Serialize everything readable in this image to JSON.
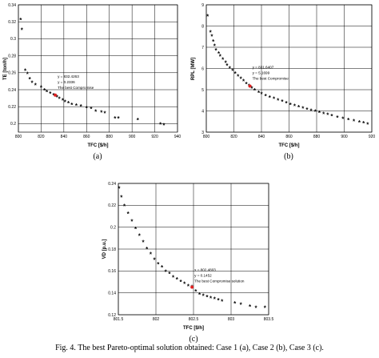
{
  "figure": {
    "caption": "Fig. 4. The best Pareto-optimal solution obtained: Case 1 (a), Case 2 (b), Case 3 (c)."
  },
  "chart_data": [
    {
      "type": "scatter",
      "panel_label": "(a)",
      "xlabel": "TFC [$/h]",
      "ylabel": "TE [ton/h]",
      "xlim": [
        800,
        940
      ],
      "ylim": [
        0.19,
        0.34
      ],
      "xticks": [
        800,
        820,
        840,
        860,
        880,
        900,
        920,
        940
      ],
      "yticks": [
        0.2,
        0.22,
        0.24,
        0.26,
        0.28,
        0.3,
        0.32,
        0.34
      ],
      "grid": true,
      "annotation": [
        "y = 832.4263",
        "y = 0.2336",
        "The best Compromise"
      ],
      "highlight": {
        "x": 832.4263,
        "y": 0.2336
      },
      "points": [
        [
          802,
          0.322
        ],
        [
          803,
          0.31
        ],
        [
          806,
          0.262
        ],
        [
          808,
          0.258
        ],
        [
          810,
          0.252
        ],
        [
          812,
          0.248
        ],
        [
          815,
          0.245
        ],
        [
          820,
          0.242
        ],
        [
          823,
          0.239
        ],
        [
          825,
          0.237
        ],
        [
          828,
          0.235
        ],
        [
          831,
          0.233
        ],
        [
          834,
          0.231
        ],
        [
          836,
          0.229
        ],
        [
          839,
          0.227
        ],
        [
          841,
          0.225
        ],
        [
          844,
          0.224
        ],
        [
          847,
          0.222
        ],
        [
          851,
          0.221
        ],
        [
          855,
          0.22
        ],
        [
          860,
          0.218
        ],
        [
          864,
          0.217
        ],
        [
          868,
          0.214
        ],
        [
          873,
          0.213
        ],
        [
          876,
          0.212
        ],
        [
          885,
          0.206
        ],
        [
          888,
          0.206
        ],
        [
          905,
          0.204
        ],
        [
          925,
          0.199
        ],
        [
          928,
          0.198
        ]
      ]
    },
    {
      "type": "scatter",
      "panel_label": "(b)",
      "xlabel": "TFC [$/h]",
      "ylabel": "RPL [MW]",
      "xlim": [
        800,
        920
      ],
      "ylim": [
        3,
        9
      ],
      "xticks": [
        800,
        820,
        840,
        860,
        880,
        900,
        920
      ],
      "yticks": [
        3,
        4,
        5,
        6,
        7,
        8,
        9
      ],
      "grid": true,
      "annotation": [
        "y = 831.6407",
        "y = 5.1699",
        "The best Compromise"
      ],
      "highlight": {
        "x": 831.6407,
        "y": 5.1699
      },
      "points": [
        [
          801,
          8.45
        ],
        [
          803,
          7.7
        ],
        [
          804,
          7.5
        ],
        [
          805,
          7.25
        ],
        [
          806,
          7.05
        ],
        [
          807,
          6.85
        ],
        [
          809,
          6.7
        ],
        [
          810,
          6.55
        ],
        [
          812,
          6.4
        ],
        [
          814,
          6.25
        ],
        [
          815,
          6.12
        ],
        [
          817,
          6.0
        ],
        [
          819,
          5.88
        ],
        [
          821,
          5.75
        ],
        [
          823,
          5.62
        ],
        [
          825,
          5.5
        ],
        [
          827,
          5.38
        ],
        [
          829,
          5.26
        ],
        [
          831,
          5.17
        ],
        [
          833,
          5.05
        ],
        [
          835,
          4.95
        ],
        [
          838,
          4.85
        ],
        [
          840,
          4.78
        ],
        [
          843,
          4.7
        ],
        [
          846,
          4.62
        ],
        [
          849,
          4.55
        ],
        [
          852,
          4.48
        ],
        [
          855,
          4.42
        ],
        [
          858,
          4.35
        ],
        [
          861,
          4.28
        ],
        [
          864,
          4.22
        ],
        [
          867,
          4.16
        ],
        [
          870,
          4.1
        ],
        [
          873,
          4.05
        ],
        [
          876,
          4.0
        ],
        [
          879,
          3.95
        ],
        [
          882,
          3.9
        ],
        [
          885,
          3.85
        ],
        [
          888,
          3.8
        ],
        [
          891,
          3.75
        ],
        [
          895,
          3.68
        ],
        [
          899,
          3.62
        ],
        [
          903,
          3.55
        ],
        [
          907,
          3.5
        ],
        [
          911,
          3.45
        ],
        [
          914,
          3.4
        ],
        [
          917,
          3.35
        ]
      ]
    },
    {
      "type": "scatter",
      "panel_label": "(c)",
      "xlabel": "TFC [$/h]",
      "ylabel": "VD [p.u.]",
      "xlim": [
        801.5,
        803.5
      ],
      "ylim": [
        0.12,
        0.24
      ],
      "xticks": [
        801.5,
        802,
        802.5,
        803,
        803.5
      ],
      "yticks": [
        0.12,
        0.14,
        0.16,
        0.18,
        0.2,
        0.22,
        0.24
      ],
      "grid": true,
      "annotation": [
        "x = 802.4803",
        "y = 0.1452",
        "The best Compromise solution"
      ],
      "highlight": {
        "x": 802.4803,
        "y": 0.1452
      },
      "points": [
        [
          801.51,
          0.235
        ],
        [
          801.54,
          0.227
        ],
        [
          801.58,
          0.219
        ],
        [
          801.63,
          0.212
        ],
        [
          801.68,
          0.205
        ],
        [
          801.73,
          0.198
        ],
        [
          801.78,
          0.192
        ],
        [
          801.83,
          0.186
        ],
        [
          801.88,
          0.18
        ],
        [
          801.93,
          0.175
        ],
        [
          801.98,
          0.17
        ],
        [
          802.03,
          0.166
        ],
        [
          802.08,
          0.163
        ],
        [
          802.13,
          0.159
        ],
        [
          802.18,
          0.157
        ],
        [
          802.23,
          0.154
        ],
        [
          802.28,
          0.152
        ],
        [
          802.33,
          0.15
        ],
        [
          802.38,
          0.148
        ],
        [
          802.43,
          0.146
        ],
        [
          802.48,
          0.145
        ],
        [
          802.53,
          0.141
        ],
        [
          802.58,
          0.138
        ],
        [
          802.63,
          0.137
        ],
        [
          802.68,
          0.136
        ],
        [
          802.73,
          0.135
        ],
        [
          802.78,
          0.134
        ],
        [
          802.83,
          0.133
        ],
        [
          802.88,
          0.132
        ],
        [
          803.05,
          0.13
        ],
        [
          803.13,
          0.129
        ],
        [
          803.25,
          0.127
        ],
        [
          803.33,
          0.126
        ],
        [
          803.45,
          0.126
        ]
      ]
    }
  ]
}
